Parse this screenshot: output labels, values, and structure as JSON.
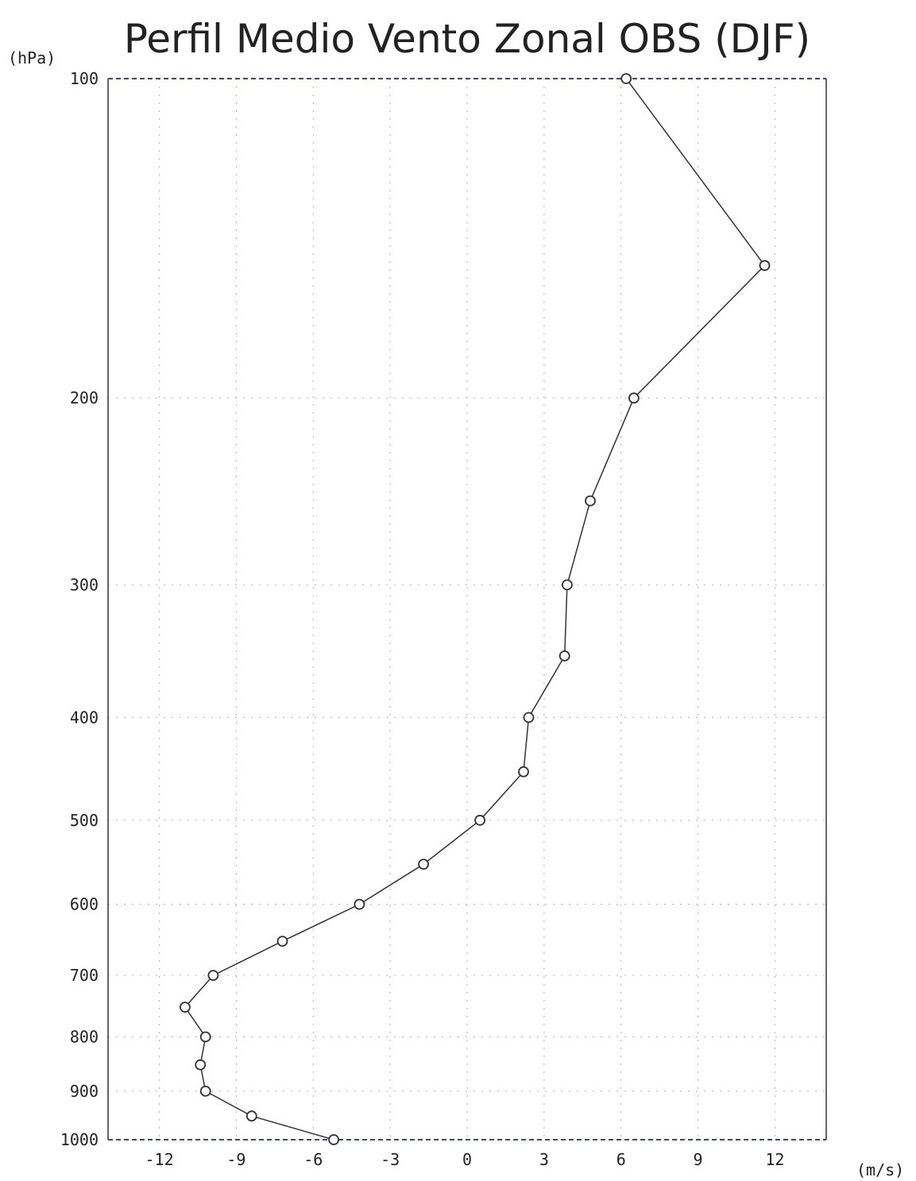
{
  "chart_data": {
    "type": "line",
    "title": "Perfil Medio Vento Zonal OBS (DJF)",
    "ylabel": "(hPa)",
    "xlabel": "(m/s)",
    "xlim": [
      -14,
      14
    ],
    "ylim": [
      1000,
      100
    ],
    "y_scale": "log",
    "grid": true,
    "x_ticks": [
      -12,
      -9,
      -6,
      -3,
      0,
      3,
      6,
      9,
      12
    ],
    "x_tick_labels": [
      "-12",
      "-9",
      "-6",
      "-3",
      "0",
      "3",
      "6",
      "9",
      "12"
    ],
    "y_ticks": [
      100,
      200,
      300,
      400,
      500,
      600,
      700,
      800,
      900,
      1000
    ],
    "y_tick_labels": [
      "100",
      "200",
      "300",
      "400",
      "500",
      "600",
      "700",
      "800",
      "900",
      "1000"
    ],
    "series": [
      {
        "marker": "circle",
        "color": "#333333",
        "points": [
          {
            "p": 100,
            "u": 6.2
          },
          {
            "p": 150,
            "u": 11.6
          },
          {
            "p": 200,
            "u": 6.5
          },
          {
            "p": 250,
            "u": 4.8
          },
          {
            "p": 300,
            "u": 3.9
          },
          {
            "p": 350,
            "u": 3.8
          },
          {
            "p": 400,
            "u": 2.4
          },
          {
            "p": 450,
            "u": 2.2
          },
          {
            "p": 500,
            "u": 0.5
          },
          {
            "p": 550,
            "u": -1.7
          },
          {
            "p": 600,
            "u": -4.2
          },
          {
            "p": 650,
            "u": -7.2
          },
          {
            "p": 700,
            "u": -9.9
          },
          {
            "p": 750,
            "u": -11.0
          },
          {
            "p": 800,
            "u": -10.2
          },
          {
            "p": 850,
            "u": -10.4
          },
          {
            "p": 900,
            "u": -10.2
          },
          {
            "p": 950,
            "u": -8.4
          },
          {
            "p": 1000,
            "u": -5.2
          }
        ]
      }
    ]
  }
}
